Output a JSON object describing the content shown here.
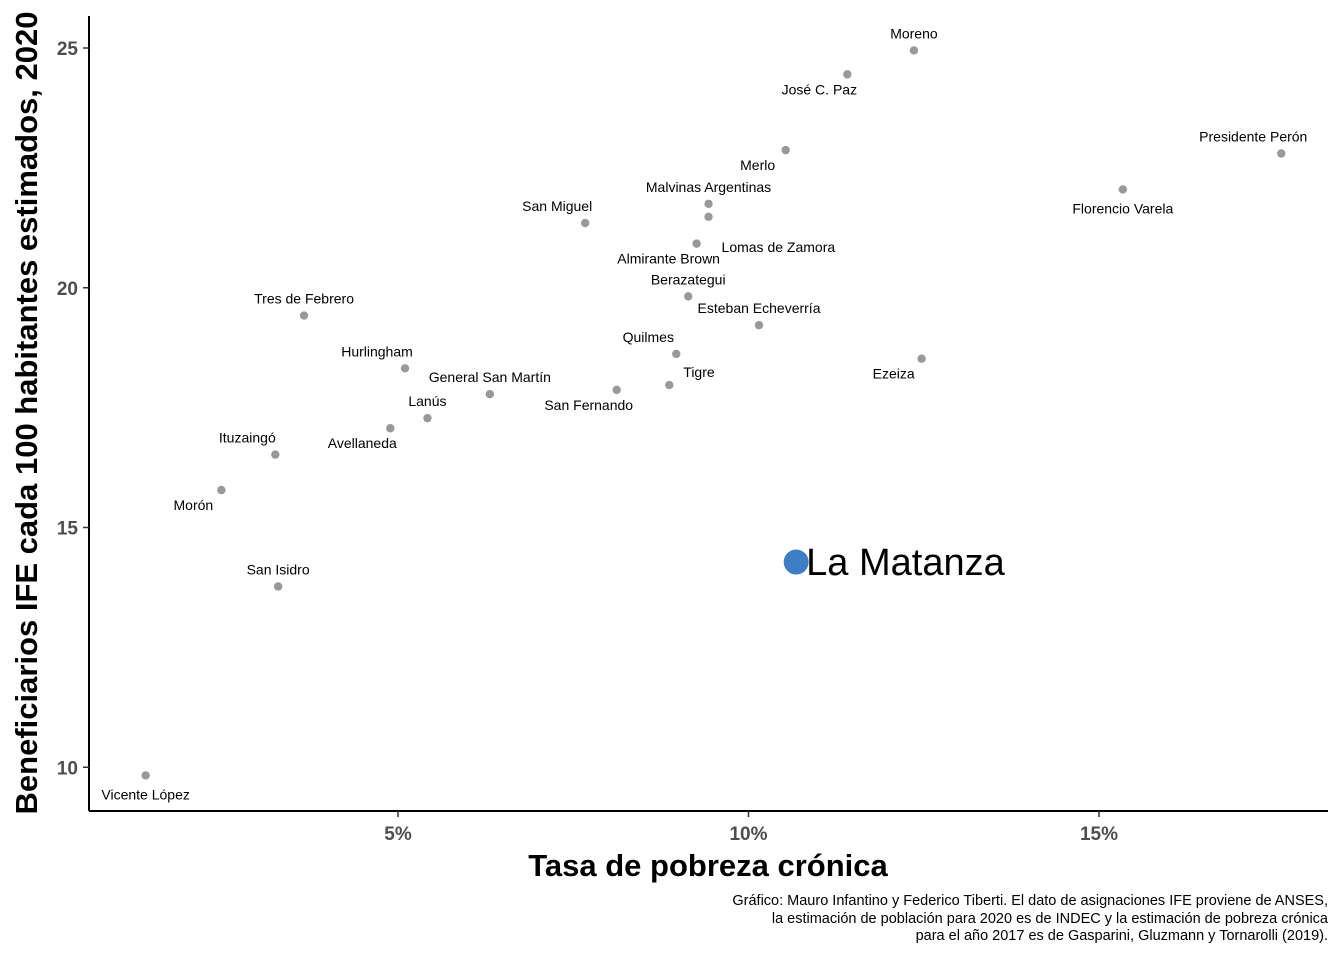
{
  "chart_data": {
    "type": "scatter",
    "xlabel": "Tasa de pobreza crónica",
    "ylabel": "Beneficiarios IFE cada 100 habitantes estimados, 2020",
    "x_ticks": [
      {
        "value": 5,
        "label": "5%"
      },
      {
        "value": 10,
        "label": "10%"
      },
      {
        "value": 15,
        "label": "15%"
      }
    ],
    "y_ticks": [
      {
        "value": 10,
        "label": "10"
      },
      {
        "value": 15,
        "label": "15"
      },
      {
        "value": 20,
        "label": "20"
      },
      {
        "value": 25,
        "label": "25"
      }
    ],
    "xlim": [
      0.3,
      18.1
    ],
    "ylim": [
      9.1,
      25.7
    ],
    "grid": false,
    "point_color": "#999999",
    "highlight_color": "#3d7ec4",
    "points": [
      {
        "name": "Moreno",
        "x": 12.36,
        "y": 24.95,
        "label_pos": "above"
      },
      {
        "name": "José C. Paz",
        "x": 11.41,
        "y": 24.45,
        "label_pos": "below-left"
      },
      {
        "name": "Presidente Perón",
        "x": 17.6,
        "y": 22.8,
        "label_pos": "above-left"
      },
      {
        "name": "Merlo",
        "x": 10.53,
        "y": 22.87,
        "label_pos": "below-left"
      },
      {
        "name": "Florencio Varela",
        "x": 15.34,
        "y": 22.05,
        "label_pos": "below"
      },
      {
        "name": "Malvinas Argentinas",
        "x": 9.43,
        "y": 21.75,
        "label_pos": "above"
      },
      {
        "name": "San Miguel",
        "x": 7.67,
        "y": 21.35,
        "label_pos": "above-left"
      },
      {
        "name": "Lomas de Zamora",
        "x": 9.43,
        "y": 21.48,
        "label_pos": "below-right"
      },
      {
        "name": "Almirante Brown",
        "x": 9.26,
        "y": 20.92,
        "label_pos": "below-left"
      },
      {
        "name": "Berazategui",
        "x": 9.14,
        "y": 19.82,
        "label_pos": "above"
      },
      {
        "name": "Tres de Febrero",
        "x": 3.66,
        "y": 19.42,
        "label_pos": "above"
      },
      {
        "name": "Esteban Echeverría",
        "x": 10.15,
        "y": 19.22,
        "label_pos": "above"
      },
      {
        "name": "Quilmes",
        "x": 8.97,
        "y": 18.62,
        "label_pos": "above-left"
      },
      {
        "name": "Ezeiza",
        "x": 12.47,
        "y": 18.52,
        "label_pos": "below-left"
      },
      {
        "name": "Hurlingham",
        "x": 5.1,
        "y": 18.32,
        "label_pos": "above-left"
      },
      {
        "name": "Tigre",
        "x": 8.87,
        "y": 17.97,
        "label_pos": "above-right"
      },
      {
        "name": "San Fernando",
        "x": 8.12,
        "y": 17.87,
        "label_pos": "below-left"
      },
      {
        "name": "General San Martín",
        "x": 6.31,
        "y": 17.78,
        "label_pos": "above"
      },
      {
        "name": "Lanús",
        "x": 5.42,
        "y": 17.28,
        "label_pos": "above"
      },
      {
        "name": "Avellaneda",
        "x": 4.89,
        "y": 17.07,
        "label_pos": "below-left"
      },
      {
        "name": "Ituzaingó",
        "x": 3.25,
        "y": 16.52,
        "label_pos": "above-left"
      },
      {
        "name": "Morón",
        "x": 2.48,
        "y": 15.78,
        "label_pos": "below-left"
      },
      {
        "name": "San Isidro",
        "x": 3.29,
        "y": 13.77,
        "label_pos": "above"
      },
      {
        "name": "Vicente López",
        "x": 1.4,
        "y": 9.83,
        "label_pos": "below"
      }
    ],
    "highlight": {
      "name": "La Matanza",
      "x": 10.68,
      "y": 14.28
    }
  },
  "caption": {
    "lines": [
      "Gráfico: Mauro Infantino y Federico Tiberti. El dato de asignaciones IFE proviene de ANSES,",
      "la estimación de población para 2020 es de INDEC y la estimación de pobreza crónica",
      "para el año 2017 es de Gasparini, Gluzmann y Tornarolli (2019)."
    ]
  }
}
